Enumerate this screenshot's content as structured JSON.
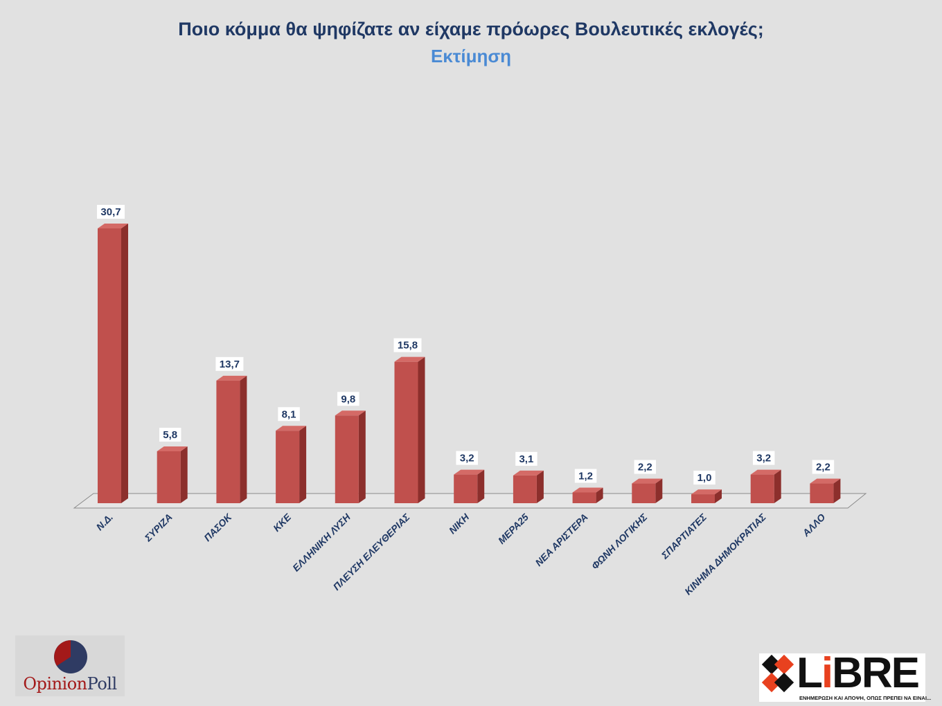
{
  "chart_data": {
    "type": "bar",
    "title": "Ποιο κόμμα θα ψηφίζατε αν είχαμε πρόωρες Βουλευτικές εκλογές;",
    "subtitle": "Εκτίμηση",
    "categories": [
      "Ν.Δ.",
      "ΣΥΡΙΖΑ",
      "ΠΑΣΟΚ",
      "ΚΚΕ",
      "ΕΛΛΗΝΙΚΗ ΛΥΣΗ",
      "ΠΛΕΥΣΗ ΕΛΕΥΘΕΡΙΑΣ",
      "ΝΙΚΗ",
      "ΜΕΡΑ25",
      "ΝΕΑ ΑΡΙΣΤΕΡΑ",
      "ΦΩΝΗ ΛΟΓΙΚΗΣ",
      "ΣΠΑΡΤΙΑΤΕΣ",
      "ΚΙΝΗΜΑ ΔΗΜΟΚΡΑΤΙΑΣ",
      "ΑΛΛΟ"
    ],
    "values": [
      30.7,
      5.8,
      13.7,
      8.1,
      9.8,
      15.8,
      3.2,
      3.1,
      1.2,
      2.2,
      1.0,
      3.2,
      2.2
    ],
    "value_labels": [
      "30,7",
      "5,8",
      "13,7",
      "8,1",
      "9,8",
      "15,8",
      "3,2",
      "3,1",
      "1,2",
      "2,2",
      "1,0",
      "3,2",
      "2,2"
    ],
    "style": "3d-column",
    "grid": false,
    "ylim": [
      0,
      32
    ],
    "colors": {
      "bar_front": "#c0504d",
      "bar_side": "#8c2f2c",
      "bar_top": "#d46a66",
      "title": "#1f3864",
      "subtitle": "#4a8ad4",
      "background": "#e1e1e1"
    }
  },
  "logos": {
    "opinionpoll": {
      "text_part1": "Opinion",
      "text_part2": "Poll",
      "red": "#a31919",
      "blue": "#2f3b63"
    },
    "libre": {
      "word": "LiBRE",
      "tagline": "ΕΝΗΜΕΡΩΣΗ ΚΑΙ ΑΠΟΨΗ, ΟΠΩΣ ΠΡΕΠΕΙ ΝΑ ΕΙΝΑΙ...",
      "accent": "#e8411f"
    }
  }
}
